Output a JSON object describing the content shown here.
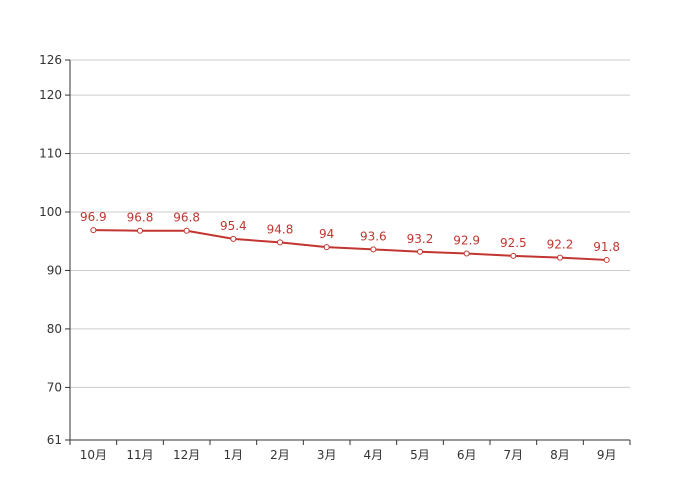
{
  "chart_data": {
    "type": "line",
    "title": "",
    "xlabel": "",
    "ylabel": "",
    "categories": [
      "10月",
      "11月",
      "12月",
      "1月",
      "2月",
      "3月",
      "4月",
      "5月",
      "6月",
      "7月",
      "8月",
      "9月"
    ],
    "series": [
      {
        "values": [
          96.9,
          96.8,
          96.8,
          95.4,
          94.8,
          94,
          93.6,
          93.2,
          92.9,
          92.5,
          92.2,
          91.8
        ],
        "labels": [
          "96.9",
          "96.8",
          "96.8",
          "95.4",
          "94.8",
          "94",
          "93.6",
          "93.2",
          "92.9",
          "92.5",
          "92.2",
          "91.8"
        ],
        "color": "#c23531"
      }
    ],
    "ylim": [
      61,
      126
    ],
    "yticks": [
      61,
      70,
      80,
      90,
      100,
      110,
      120,
      126
    ],
    "ytick_labels": [
      "61",
      "70",
      "80",
      "90",
      "100",
      "110",
      "120",
      "126"
    ],
    "grid": true,
    "colors": {
      "line": "#c23531",
      "axis": "#333333",
      "grid": "#cccccc",
      "tick_text": "#333333",
      "label_text": "#c23531"
    }
  }
}
